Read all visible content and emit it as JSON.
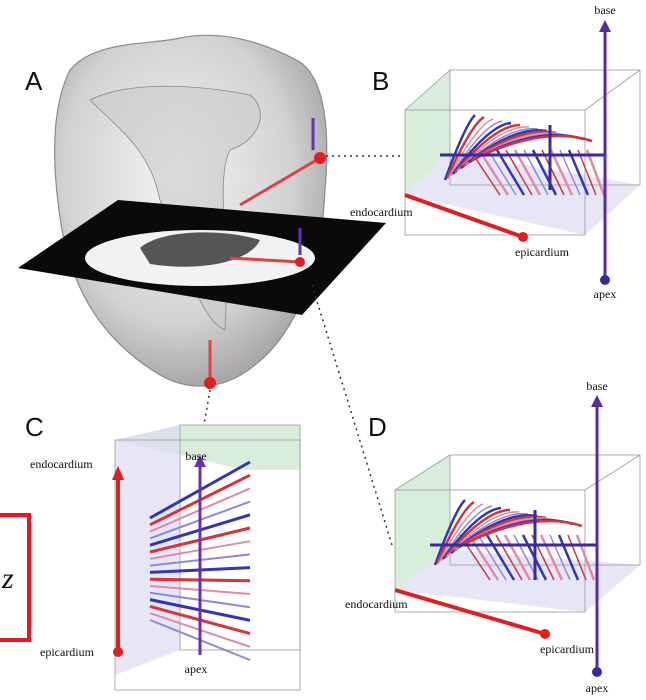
{
  "panels": [
    {
      "label": "A"
    },
    {
      "label": "B",
      "axis_top": "base",
      "axis_bottom": "apex",
      "inner": "endocardium",
      "outer": "epicardium"
    },
    {
      "label": "C",
      "axis_top": "base",
      "axis_bottom": "apex",
      "inner": "endocardium",
      "outer": "epicardium"
    },
    {
      "label": "D",
      "axis_top": "base",
      "axis_bottom": "apex",
      "inner": "endocardium",
      "outer": "epicardium"
    }
  ],
  "overlay": {
    "symbol": "z"
  }
}
